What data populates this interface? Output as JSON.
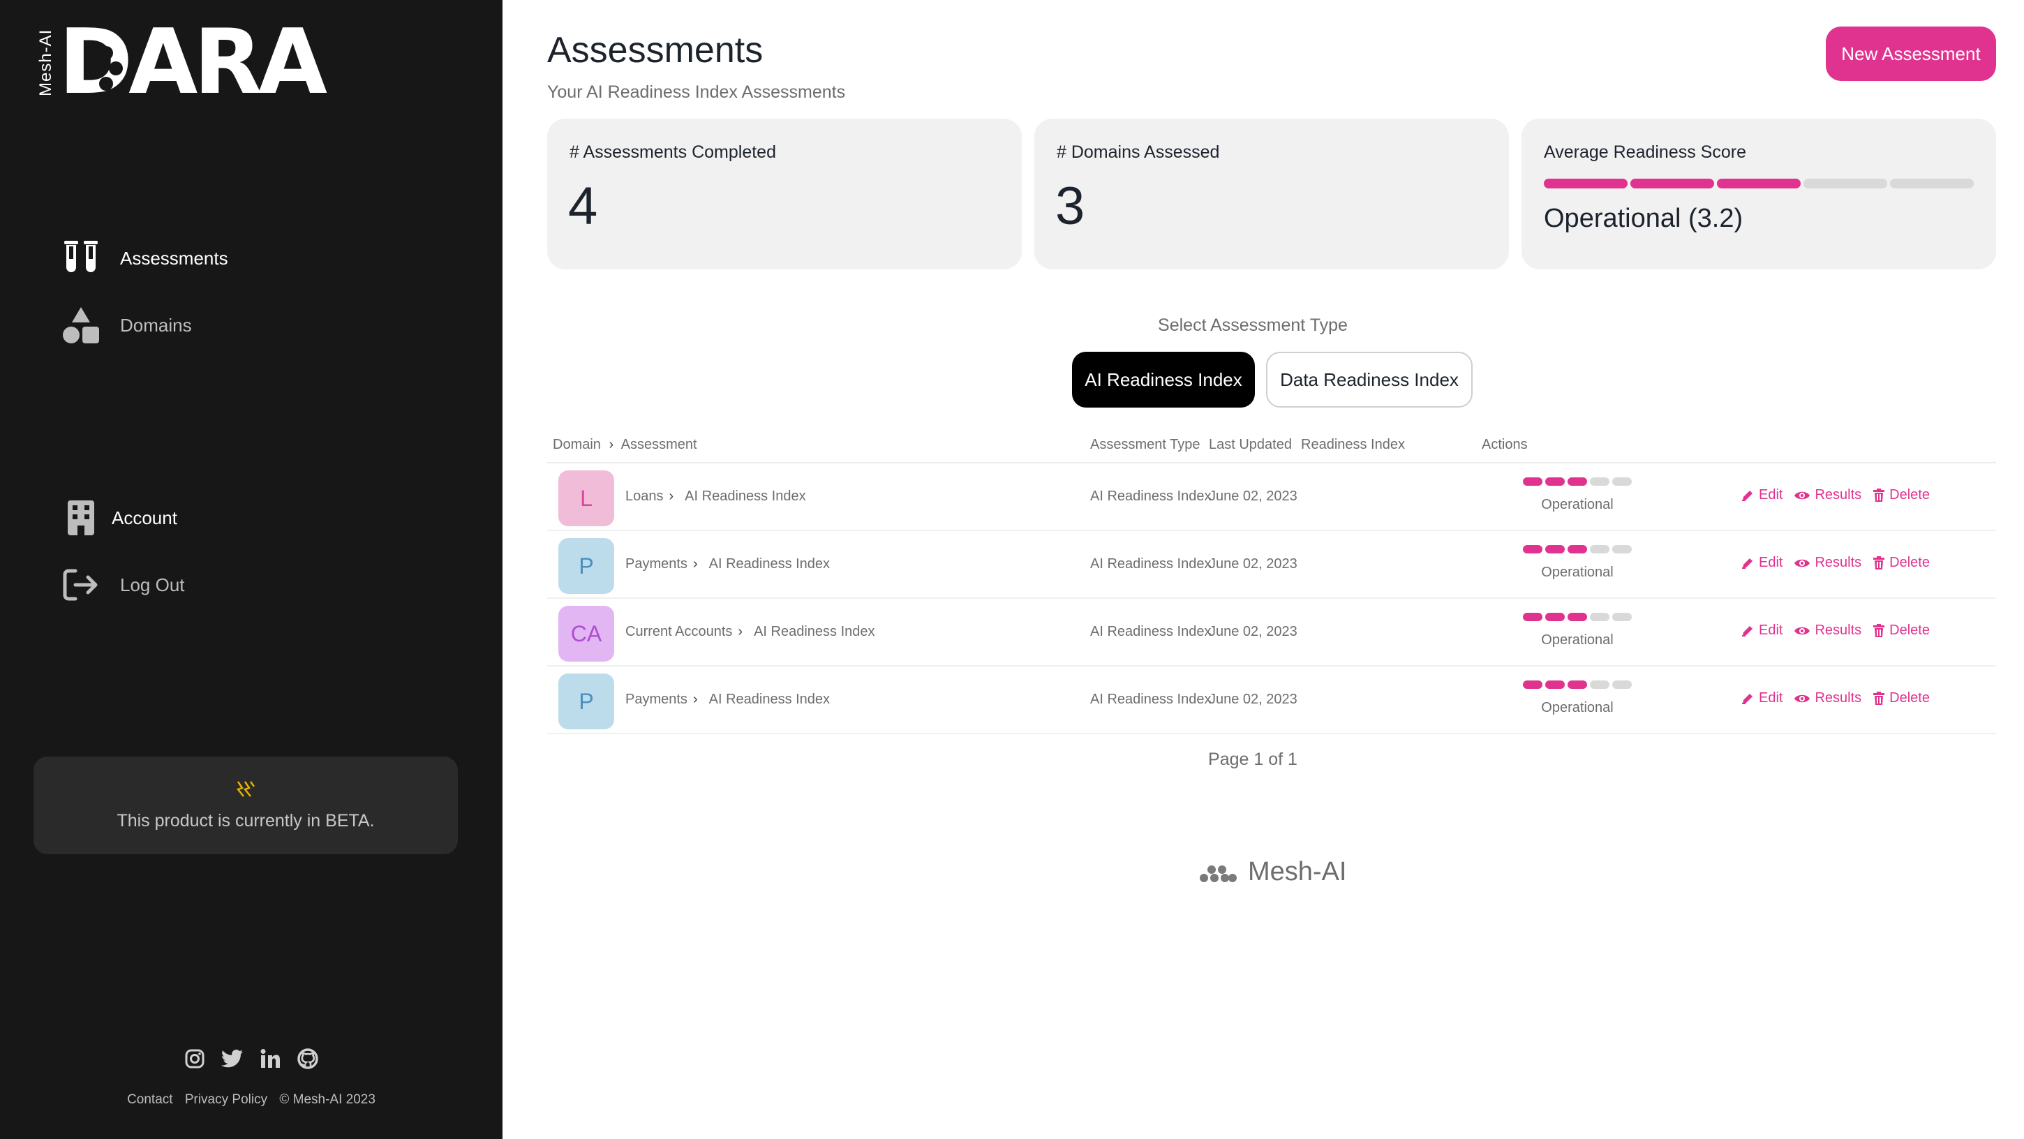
{
  "logo": {
    "vertical_text": "Mesh-AI",
    "wordmark": "DARA"
  },
  "nav": {
    "assessments": "Assessments",
    "domains": "Domains",
    "account": "Account",
    "logout": "Log Out"
  },
  "beta": {
    "icon": "lightning-icon",
    "text": "This product is currently in BETA."
  },
  "socials": [
    "instagram-icon",
    "twitter-icon",
    "linkedin-icon",
    "github-icon"
  ],
  "footer": {
    "contact": "Contact",
    "privacy": "Privacy Policy",
    "copyright": "© Mesh-AI 2023"
  },
  "header": {
    "title": "Assessments",
    "subtitle": "Your AI Readiness Index Assessments",
    "new_button": "New Assessment"
  },
  "stats": {
    "completed_label": "# Assessments Completed",
    "completed_value": "4",
    "domains_label": "# Domains Assessed",
    "domains_value": "3",
    "score_label": "Average Readiness Score",
    "score_value": "Operational (3.2)",
    "score_level": 3,
    "score_max": 5
  },
  "selector": {
    "label": "Select Assessment Type",
    "options": [
      "AI Readiness Index",
      "Data Readiness Index"
    ],
    "selected": "AI Readiness Index"
  },
  "table": {
    "columns": {
      "domain": "Domain",
      "assessment": "Assessment",
      "type": "Assessment Type",
      "updated": "Last Updated",
      "readiness": "Readiness Index",
      "actions": "Actions"
    },
    "action_labels": {
      "edit": "Edit",
      "results": "Results",
      "delete": "Delete"
    },
    "rows": [
      {
        "initials": "L",
        "domain": "Loans",
        "assessment": "AI Readiness Index",
        "type": "AI Readiness Index",
        "updated": "June 02, 2023",
        "readiness": "Operational",
        "level": 3
      },
      {
        "initials": "P",
        "domain": "Payments",
        "assessment": "AI Readiness Index",
        "type": "AI Readiness Index",
        "updated": "June 02, 2023",
        "readiness": "Operational",
        "level": 3
      },
      {
        "initials": "CA",
        "domain": "Current Accounts",
        "assessment": "AI Readiness Index",
        "type": "AI Readiness Index",
        "updated": "June 02, 2023",
        "readiness": "Operational",
        "level": 3
      },
      {
        "initials": "P",
        "domain": "Payments",
        "assessment": "AI Readiness Index",
        "type": "AI Readiness Index",
        "updated": "June 02, 2023",
        "readiness": "Operational",
        "level": 3
      }
    ]
  },
  "pager": "Page 1 of 1",
  "brand_footer": "Mesh-AI",
  "colors": {
    "accent": "#e0338f",
    "sidebar": "#171717",
    "bar_empty": "#d9d9d9",
    "avatar_pink_bg": "#f0bcd8",
    "avatar_pink_fg": "#d9489a",
    "avatar_blue_bg": "#bcdcec",
    "avatar_blue_fg": "#4a8fbf",
    "avatar_purple_bg": "#e2b6f2",
    "avatar_purple_fg": "#b04dd6"
  }
}
